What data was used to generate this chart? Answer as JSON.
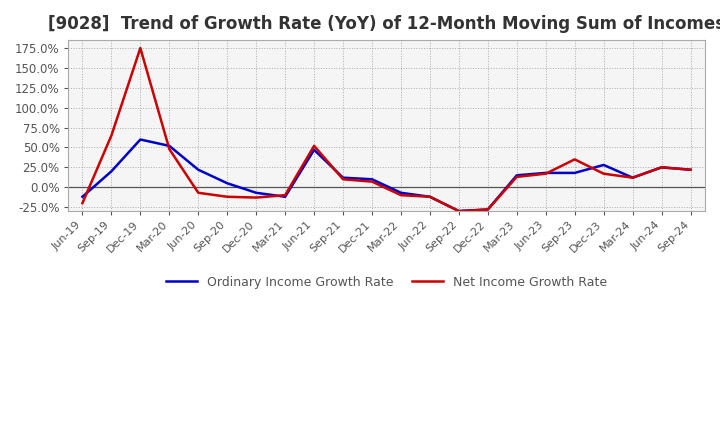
{
  "title": "[9028]  Trend of Growth Rate (YoY) of 12-Month Moving Sum of Incomes",
  "title_fontsize": 12,
  "ylim": [
    -0.3,
    1.85
  ],
  "yticks": [
    -0.25,
    0.0,
    0.25,
    0.5,
    0.75,
    1.0,
    1.25,
    1.5,
    1.75
  ],
  "ytick_labels": [
    "-25.0%",
    "0.0%",
    "25.0%",
    "50.0%",
    "75.0%",
    "100.0%",
    "125.0%",
    "150.0%",
    "175.0%"
  ],
  "x_labels": [
    "Jun-19",
    "Sep-19",
    "Dec-19",
    "Mar-20",
    "Jun-20",
    "Sep-20",
    "Dec-20",
    "Mar-21",
    "Jun-21",
    "Sep-21",
    "Dec-21",
    "Mar-22",
    "Jun-22",
    "Sep-22",
    "Dec-22",
    "Mar-23",
    "Jun-23",
    "Sep-23",
    "Dec-23",
    "Mar-24",
    "Jun-24",
    "Sep-24"
  ],
  "ordinary_income": [
    -0.12,
    0.2,
    0.6,
    0.52,
    0.22,
    0.05,
    -0.07,
    -0.12,
    0.47,
    0.12,
    0.1,
    -0.07,
    -0.12,
    -0.3,
    -0.28,
    0.15,
    0.18,
    0.18,
    0.28,
    0.12,
    0.25,
    0.22
  ],
  "net_income": [
    -0.2,
    0.65,
    1.75,
    0.48,
    -0.07,
    -0.12,
    -0.13,
    -0.1,
    0.52,
    0.1,
    0.07,
    -0.1,
    -0.12,
    -0.3,
    -0.28,
    0.13,
    0.17,
    0.35,
    0.17,
    0.12,
    0.25,
    0.22
  ],
  "ordinary_color": "#0000cc",
  "net_color": "#cc0000",
  "line_width": 1.8,
  "legend_labels": [
    "Ordinary Income Growth Rate",
    "Net Income Growth Rate"
  ],
  "background_color": "#ffffff",
  "plot_bg_color": "#f5f5f5",
  "grid_color": "#aaaaaa",
  "spine_color": "#aaaaaa",
  "title_color": "#333333",
  "tick_color": "#555555",
  "zero_line_color": "#555555"
}
